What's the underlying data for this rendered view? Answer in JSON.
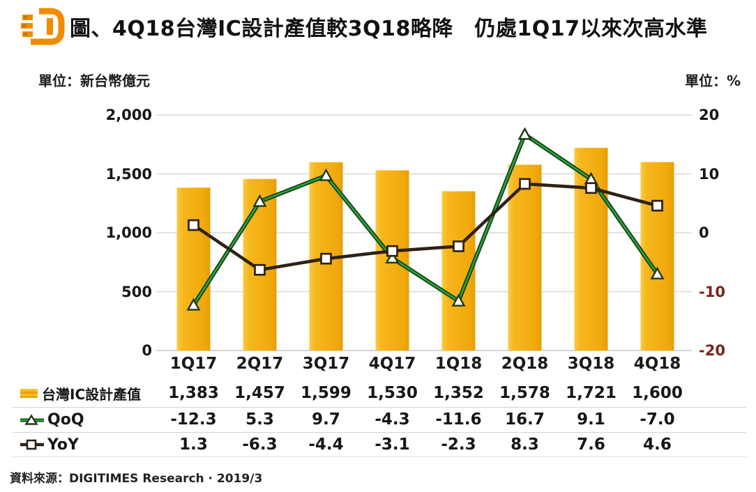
{
  "header": {
    "title": "圖、4Q18台灣IC設計產值較3Q18略降　仍處1Q17以來次高水準"
  },
  "units": {
    "left": "單位：新台幣億元",
    "right": "單位：%"
  },
  "source": "資料來源：DIGITIMES Research · 2019/3",
  "colors": {
    "bar": "#F5B318",
    "bar_edge": "#E79F05",
    "qoq_line": "#21A63C",
    "qoq_dark": "#1B3A14",
    "yoy_line": "#2E2214",
    "grid": "#d9d9d9",
    "negative_tick": "#7b241c"
  },
  "chart_data": {
    "type": "bar+line combo",
    "categories": [
      "1Q17",
      "2Q17",
      "3Q17",
      "4Q17",
      "1Q18",
      "2Q18",
      "3Q18",
      "4Q18"
    ],
    "series": [
      {
        "name": "台灣IC設計產值",
        "type": "bar",
        "axis": "left",
        "values": [
          1383,
          1457,
          1599,
          1530,
          1352,
          1578,
          1721,
          1600
        ]
      },
      {
        "name": "QoQ",
        "type": "line",
        "axis": "right",
        "marker": "triangle",
        "values": [
          -12.3,
          5.3,
          9.7,
          -4.3,
          -11.6,
          16.7,
          9.1,
          -7.0
        ]
      },
      {
        "name": "YoY",
        "type": "line",
        "axis": "right",
        "marker": "square",
        "values": [
          1.3,
          -6.3,
          -4.4,
          -3.1,
          -2.3,
          8.3,
          7.6,
          4.6
        ]
      }
    ],
    "left_axis": {
      "label": "單位：新台幣億元",
      "min": 0,
      "max": 2000,
      "ticks": [
        "2,000",
        "1,500",
        "1,000",
        "500",
        "0"
      ],
      "tick_values": [
        2000,
        1500,
        1000,
        500,
        0
      ]
    },
    "right_axis": {
      "label": "單位：%",
      "min": -20,
      "max": 20,
      "ticks": [
        "20",
        "10",
        "0",
        "-10",
        "-20"
      ],
      "tick_values": [
        20,
        10,
        0,
        -10,
        -20
      ]
    },
    "grid": "horizontal",
    "legend_position": "bottom-left of data table"
  },
  "table": {
    "rows": [
      {
        "label": "台灣IC設計產值",
        "swatch": "bar-swatch",
        "values": [
          "1,383",
          "1,457",
          "1,599",
          "1,530",
          "1,352",
          "1,578",
          "1,721",
          "1,600"
        ]
      },
      {
        "label": "QoQ",
        "swatch": "qoq-line-marker",
        "values": [
          "-12.3",
          "5.3",
          "9.7",
          "-4.3",
          "-11.6",
          "16.7",
          "9.1",
          "-7.0"
        ]
      },
      {
        "label": "YoY",
        "swatch": "yoy-line-marker",
        "values": [
          "1.3",
          "-6.3",
          "-4.4",
          "-3.1",
          "-2.3",
          "8.3",
          "7.6",
          "4.6"
        ]
      }
    ]
  }
}
